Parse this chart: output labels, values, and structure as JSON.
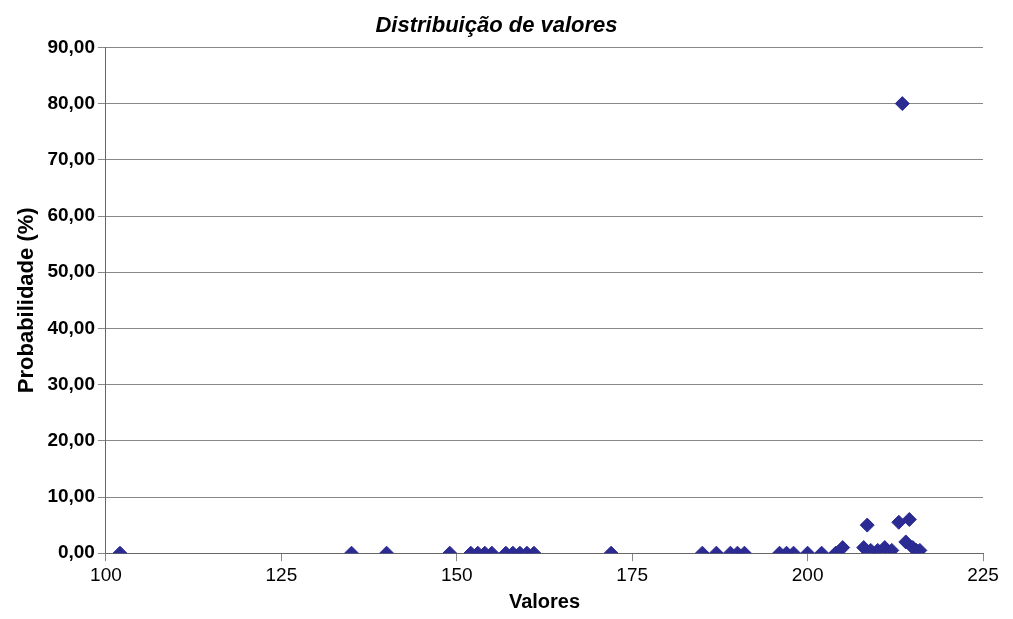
{
  "chart_data": {
    "type": "scatter",
    "title": "Distribuição de valores",
    "xlabel": "Valores",
    "ylabel": "Probabilidade (%)",
    "xlim": [
      100,
      225
    ],
    "xticks": [
      100,
      125,
      150,
      175,
      200,
      225
    ],
    "ylim": [
      0,
      90
    ],
    "yticks": [
      {
        "value": 0,
        "label": "0,00"
      },
      {
        "value": 10,
        "label": "10,00"
      },
      {
        "value": 20,
        "label": "20,00"
      },
      {
        "value": 30,
        "label": "30,00"
      },
      {
        "value": 40,
        "label": "40,00"
      },
      {
        "value": 50,
        "label": "50,00"
      },
      {
        "value": 60,
        "label": "60,00"
      },
      {
        "value": 70,
        "label": "70,00"
      },
      {
        "value": 80,
        "label": "80,00"
      },
      {
        "value": 90,
        "label": "90,00"
      }
    ],
    "grid": "y",
    "marker": "diamond",
    "legend": false,
    "series": [
      {
        "color": "#2b2b93",
        "x": [
          102,
          135,
          140,
          149,
          152,
          153,
          154,
          155,
          157,
          158,
          159,
          160,
          161,
          172,
          185,
          187,
          189,
          190,
          191,
          196,
          197,
          198,
          200,
          202,
          204,
          205,
          208,
          208.5,
          209,
          210,
          211,
          212,
          213,
          213.5,
          214,
          214.5,
          215,
          215.5,
          216
        ],
        "values": [
          0,
          0,
          0,
          0,
          0,
          0,
          0,
          0,
          0,
          0,
          0,
          0,
          0,
          0,
          0,
          0,
          0,
          0,
          0,
          0,
          0,
          0,
          0,
          0,
          0,
          1,
          1,
          5,
          0.5,
          0.5,
          1,
          0.5,
          5.5,
          80,
          2,
          6,
          1,
          0.5,
          0.5
        ]
      }
    ]
  }
}
